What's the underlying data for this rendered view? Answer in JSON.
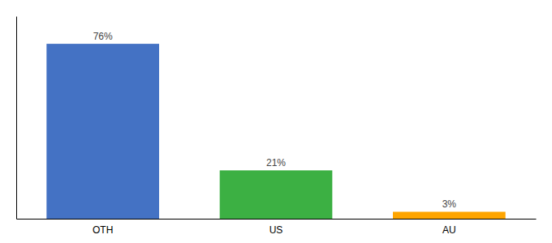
{
  "chart_data": {
    "type": "bar",
    "categories": [
      "OTH",
      "US",
      "AU"
    ],
    "values": [
      76,
      21,
      3
    ],
    "value_labels": [
      "76%",
      "21%",
      "3%"
    ],
    "colors": [
      "#4472C4",
      "#3CB043",
      "#FFA500"
    ],
    "ylim": [
      0,
      88
    ],
    "data_labels": true,
    "tick_labels": "x"
  }
}
